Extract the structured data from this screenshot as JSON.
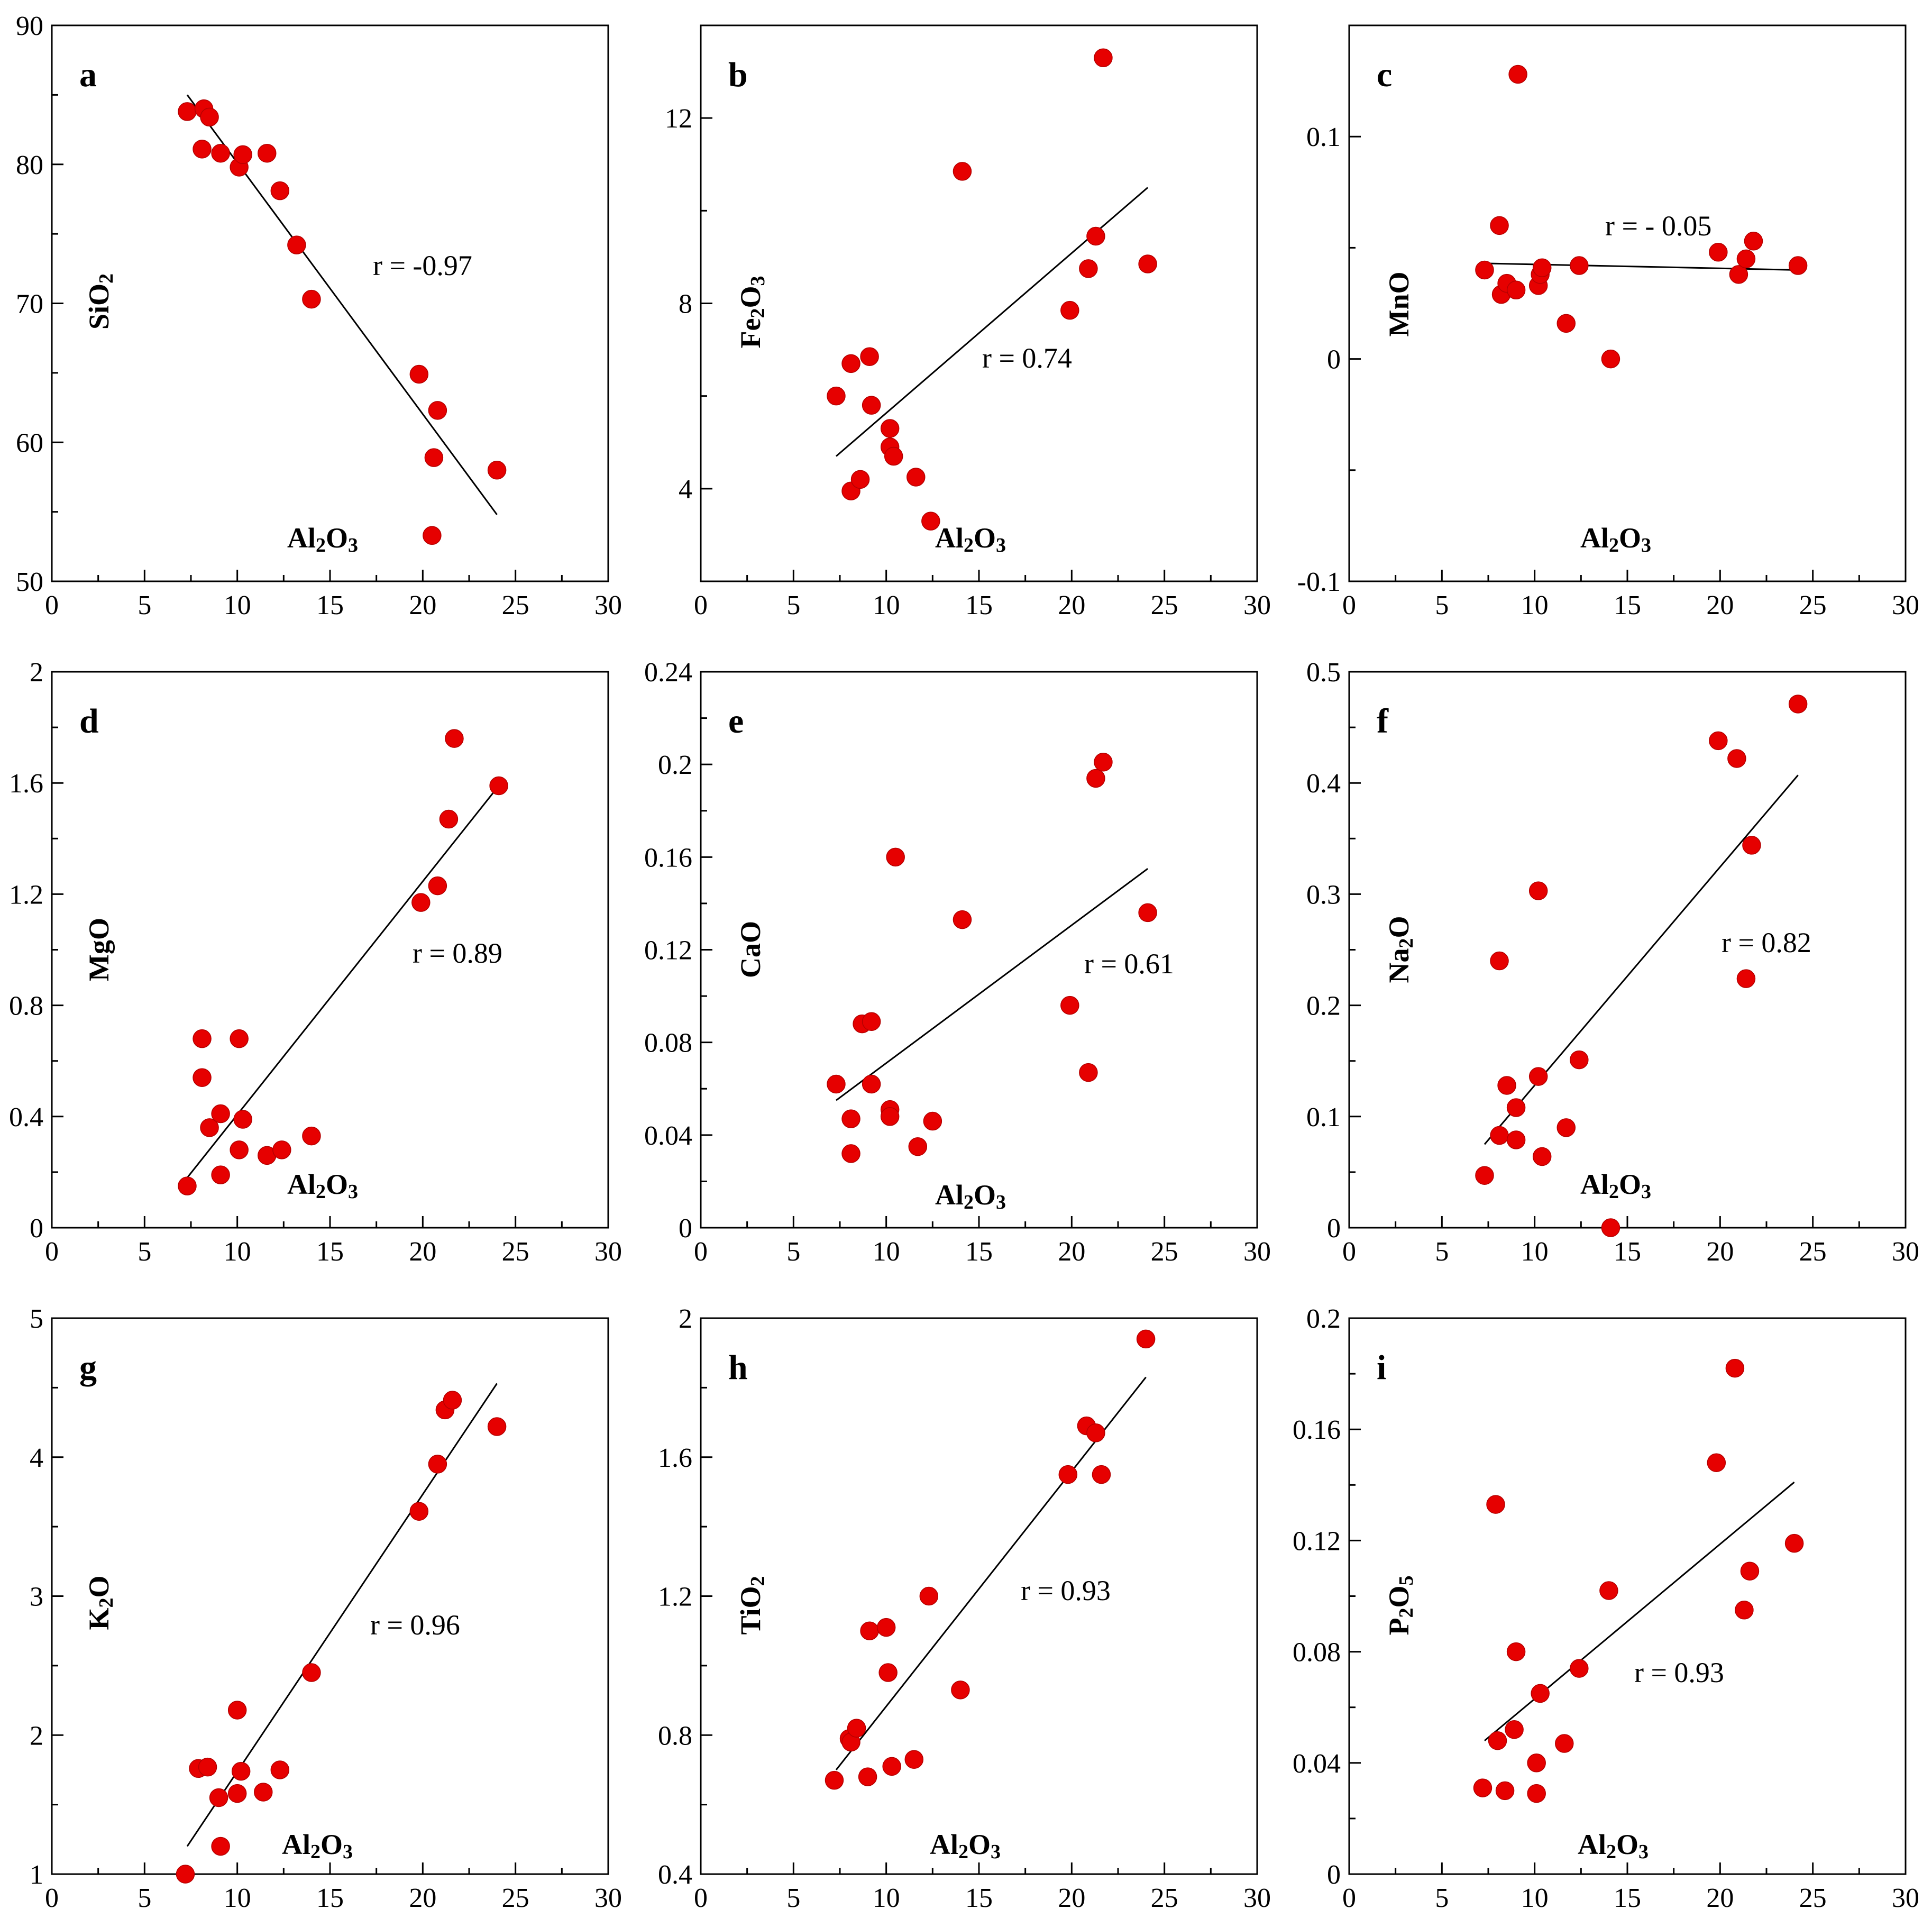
{
  "figure": {
    "accent_color": "#e60000",
    "line_color": "#000000"
  },
  "chart_data": [
    {
      "id": "a",
      "type": "scatter",
      "letter": "a",
      "xlabel": "Al2O3",
      "ylabel": "SiO2",
      "xlabel_html": {
        "base": "Al",
        "sub1": "2",
        "mid": "O",
        "sub2": "3"
      },
      "ylabel_parts": [
        {
          "t": "SiO"
        },
        {
          "t": "2",
          "sub": true
        }
      ],
      "xlim": [
        0,
        30
      ],
      "ylim": [
        50,
        90
      ],
      "xticks": [
        0,
        5,
        10,
        15,
        20,
        25,
        30
      ],
      "yticks": [
        50,
        60,
        70,
        80,
        90
      ],
      "annotation": "r = -0.97",
      "points": [
        [
          7.3,
          83.8
        ],
        [
          8.2,
          84.0
        ],
        [
          8.5,
          83.4
        ],
        [
          8.1,
          81.1
        ],
        [
          9.1,
          80.8
        ],
        [
          10.1,
          79.8
        ],
        [
          10.3,
          80.7
        ],
        [
          11.6,
          80.8
        ],
        [
          12.3,
          78.1
        ],
        [
          13.2,
          74.2
        ],
        [
          14.0,
          70.3
        ],
        [
          19.8,
          64.9
        ],
        [
          20.8,
          62.3
        ],
        [
          20.6,
          58.9
        ],
        [
          20.5,
          53.3
        ],
        [
          24.0,
          58.0
        ]
      ],
      "fit": [
        [
          7.3,
          85.0
        ],
        [
          24.0,
          54.8
        ]
      ]
    },
    {
      "id": "b",
      "type": "scatter",
      "letter": "b",
      "xlabel": "Al2O3",
      "ylabel": "Fe2O3",
      "ylabel_parts": [
        {
          "t": "Fe"
        },
        {
          "t": "2",
          "sub": true
        },
        {
          "t": "O"
        },
        {
          "t": "3",
          "sub": true
        }
      ],
      "xlim": [
        0,
        30
      ],
      "ylim": [
        2,
        14
      ],
      "xticks": [
        0,
        5,
        10,
        15,
        20,
        25,
        30
      ],
      "yticks": [
        4,
        8,
        12
      ],
      "annotation": "r = 0.74",
      "points": [
        [
          7.3,
          6.0
        ],
        [
          8.1,
          6.7
        ],
        [
          9.1,
          6.85
        ],
        [
          9.2,
          5.8
        ],
        [
          10.2,
          5.3
        ],
        [
          10.2,
          4.9
        ],
        [
          10.4,
          4.7
        ],
        [
          8.1,
          3.95
        ],
        [
          8.6,
          4.2
        ],
        [
          11.6,
          4.25
        ],
        [
          12.4,
          3.3
        ],
        [
          14.1,
          10.85
        ],
        [
          19.9,
          7.85
        ],
        [
          20.9,
          8.75
        ],
        [
          21.3,
          9.45
        ],
        [
          21.7,
          13.3
        ],
        [
          24.1,
          8.85
        ]
      ],
      "fit": [
        [
          7.3,
          4.7
        ],
        [
          24.1,
          10.5
        ]
      ]
    },
    {
      "id": "c",
      "type": "scatter",
      "letter": "c",
      "xlabel": "Al2O3",
      "ylabel": "MnO",
      "ylabel_parts": [
        {
          "t": "MnO"
        }
      ],
      "xlim": [
        0,
        30
      ],
      "ylim": [
        -0.1,
        0.15
      ],
      "xticks": [
        0,
        5,
        10,
        15,
        20,
        25,
        30
      ],
      "yticks": [
        -0.1,
        0,
        0.1
      ],
      "annotation": "r = - 0.05",
      "points": [
        [
          7.3,
          0.04
        ],
        [
          8.1,
          0.06
        ],
        [
          8.2,
          0.029
        ],
        [
          8.5,
          0.034
        ],
        [
          9.0,
          0.031
        ],
        [
          9.1,
          0.128
        ],
        [
          10.2,
          0.033
        ],
        [
          10.3,
          0.038
        ],
        [
          10.4,
          0.041
        ],
        [
          11.7,
          0.016
        ],
        [
          12.4,
          0.042
        ],
        [
          14.1,
          0.0
        ],
        [
          19.9,
          0.048
        ],
        [
          21.0,
          0.038
        ],
        [
          21.4,
          0.045
        ],
        [
          21.8,
          0.053
        ],
        [
          24.2,
          0.042
        ]
      ],
      "fit": [
        [
          7.3,
          0.043
        ],
        [
          24.2,
          0.04
        ]
      ]
    },
    {
      "id": "d",
      "type": "scatter",
      "letter": "d",
      "xlabel": "Al2O3",
      "ylabel": "MgO",
      "ylabel_parts": [
        {
          "t": "MgO"
        }
      ],
      "xlim": [
        0,
        30
      ],
      "ylim": [
        0,
        2
      ],
      "xticks": [
        0,
        5,
        10,
        15,
        20,
        25,
        30
      ],
      "yticks": [
        0,
        0.4,
        0.8,
        1.2,
        1.6,
        2
      ],
      "annotation": "r = 0.89",
      "points": [
        [
          7.3,
          0.15
        ],
        [
          8.1,
          0.68
        ],
        [
          8.1,
          0.54
        ],
        [
          8.5,
          0.36
        ],
        [
          9.1,
          0.41
        ],
        [
          9.1,
          0.19
        ],
        [
          10.1,
          0.68
        ],
        [
          10.1,
          0.28
        ],
        [
          10.3,
          0.39
        ],
        [
          11.6,
          0.26
        ],
        [
          12.4,
          0.28
        ],
        [
          14.0,
          0.33
        ],
        [
          19.9,
          1.17
        ],
        [
          20.8,
          1.23
        ],
        [
          21.4,
          1.47
        ],
        [
          21.7,
          1.76
        ],
        [
          24.1,
          1.59
        ]
      ],
      "fit": [
        [
          7.3,
          0.18
        ],
        [
          24.1,
          1.59
        ]
      ]
    },
    {
      "id": "e",
      "type": "scatter",
      "letter": "e",
      "xlabel": "Al2O3",
      "ylabel": "CaO",
      "ylabel_parts": [
        {
          "t": "CaO"
        }
      ],
      "xlim": [
        0,
        30
      ],
      "ylim": [
        0,
        0.24
      ],
      "xticks": [
        0,
        5,
        10,
        15,
        20,
        25,
        30
      ],
      "yticks": [
        0,
        0.04,
        0.08,
        0.12,
        0.16,
        0.2,
        0.24
      ],
      "annotation": "r = 0.61",
      "points": [
        [
          7.3,
          0.062
        ],
        [
          8.1,
          0.047
        ],
        [
          8.1,
          0.032
        ],
        [
          8.7,
          0.088
        ],
        [
          9.2,
          0.089
        ],
        [
          9.2,
          0.062
        ],
        [
          10.2,
          0.051
        ],
        [
          10.2,
          0.048
        ],
        [
          10.5,
          0.16
        ],
        [
          11.7,
          0.035
        ],
        [
          12.5,
          0.046
        ],
        [
          14.1,
          0.133
        ],
        [
          19.9,
          0.096
        ],
        [
          20.9,
          0.067
        ],
        [
          21.3,
          0.194
        ],
        [
          21.7,
          0.201
        ],
        [
          24.1,
          0.136
        ]
      ],
      "fit": [
        [
          7.3,
          0.055
        ],
        [
          24.1,
          0.155
        ]
      ]
    },
    {
      "id": "f",
      "type": "scatter",
      "letter": "f",
      "xlabel": "Al2O3",
      "ylabel": "Na2O",
      "ylabel_parts": [
        {
          "t": "Na"
        },
        {
          "t": "2",
          "sub": true
        },
        {
          "t": "O"
        }
      ],
      "xlim": [
        0,
        30
      ],
      "ylim": [
        0,
        0.5
      ],
      "xticks": [
        0,
        5,
        10,
        15,
        20,
        25,
        30
      ],
      "yticks": [
        0,
        0.1,
        0.2,
        0.3,
        0.4,
        0.5
      ],
      "annotation": "r = 0.82",
      "points": [
        [
          7.3,
          0.047
        ],
        [
          8.1,
          0.24
        ],
        [
          8.1,
          0.083
        ],
        [
          8.5,
          0.128
        ],
        [
          9.0,
          0.108
        ],
        [
          9.0,
          0.079
        ],
        [
          10.2,
          0.303
        ],
        [
          10.2,
          0.136
        ],
        [
          10.4,
          0.064
        ],
        [
          11.7,
          0.09
        ],
        [
          12.4,
          0.151
        ],
        [
          14.1,
          0.0
        ],
        [
          19.9,
          0.438
        ],
        [
          20.9,
          0.422
        ],
        [
          21.4,
          0.224
        ],
        [
          21.7,
          0.344
        ],
        [
          24.2,
          0.471
        ]
      ],
      "fit": [
        [
          7.3,
          0.075
        ],
        [
          24.2,
          0.407
        ]
      ]
    },
    {
      "id": "g",
      "type": "scatter",
      "letter": "g",
      "xlabel": "Al2O3",
      "ylabel": "K2O",
      "ylabel_parts": [
        {
          "t": "K"
        },
        {
          "t": "2",
          "sub": true
        },
        {
          "t": "O"
        }
      ],
      "xlim": [
        0,
        30
      ],
      "ylim": [
        1,
        5
      ],
      "xticks": [
        0,
        5,
        10,
        15,
        20,
        25,
        30
      ],
      "yticks": [
        1,
        2,
        3,
        4,
        5
      ],
      "annotation": "r = 0.96",
      "points": [
        [
          7.2,
          1.0
        ],
        [
          7.9,
          1.76
        ],
        [
          8.4,
          1.77
        ],
        [
          9.0,
          1.55
        ],
        [
          9.1,
          1.2
        ],
        [
          10.0,
          1.58
        ],
        [
          10.0,
          2.18
        ],
        [
          10.2,
          1.74
        ],
        [
          11.4,
          1.59
        ],
        [
          12.3,
          1.75
        ],
        [
          14.0,
          2.45
        ],
        [
          19.8,
          3.61
        ],
        [
          20.8,
          3.95
        ],
        [
          21.2,
          4.34
        ],
        [
          21.6,
          4.41
        ],
        [
          24.0,
          4.22
        ]
      ],
      "fit": [
        [
          7.3,
          1.2
        ],
        [
          24.0,
          4.53
        ]
      ]
    },
    {
      "id": "h",
      "type": "scatter",
      "letter": "h",
      "xlabel": "Al2O3",
      "ylabel": "TiO2",
      "ylabel_parts": [
        {
          "t": "TiO"
        },
        {
          "t": "2",
          "sub": true
        }
      ],
      "xlim": [
        0,
        30
      ],
      "ylim": [
        0.4,
        2
      ],
      "xticks": [
        0,
        5,
        10,
        15,
        20,
        25,
        30
      ],
      "yticks": [
        0.4,
        0.8,
        1.2,
        1.6,
        2
      ],
      "annotation": "r = 0.93",
      "points": [
        [
          7.2,
          0.67
        ],
        [
          8.0,
          0.79
        ],
        [
          8.1,
          0.78
        ],
        [
          8.4,
          0.82
        ],
        [
          9.0,
          0.68
        ],
        [
          9.1,
          1.1
        ],
        [
          10.0,
          1.11
        ],
        [
          10.1,
          0.98
        ],
        [
          10.3,
          0.71
        ],
        [
          11.5,
          0.73
        ],
        [
          12.3,
          1.2
        ],
        [
          14.0,
          0.93
        ],
        [
          19.8,
          1.55
        ],
        [
          20.8,
          1.69
        ],
        [
          21.3,
          1.67
        ],
        [
          21.6,
          1.55
        ],
        [
          24.0,
          1.94
        ]
      ],
      "fit": [
        [
          7.3,
          0.7
        ],
        [
          24.0,
          1.83
        ]
      ]
    },
    {
      "id": "i",
      "type": "scatter",
      "letter": "i",
      "xlabel": "Al2O3",
      "ylabel": "P2O5",
      "ylabel_parts": [
        {
          "t": "P"
        },
        {
          "t": "2",
          "sub": true
        },
        {
          "t": "O"
        },
        {
          "t": "5",
          "sub": true
        }
      ],
      "xlim": [
        0,
        30
      ],
      "ylim": [
        0,
        0.2
      ],
      "xticks": [
        0,
        5,
        10,
        15,
        20,
        25,
        30
      ],
      "yticks": [
        0,
        0.04,
        0.08,
        0.12,
        0.16,
        0.2
      ],
      "annotation": "r = 0.93",
      "points": [
        [
          7.2,
          0.031
        ],
        [
          7.9,
          0.133
        ],
        [
          8.0,
          0.048
        ],
        [
          8.4,
          0.03
        ],
        [
          8.9,
          0.052
        ],
        [
          9.0,
          0.08
        ],
        [
          10.1,
          0.04
        ],
        [
          10.1,
          0.029
        ],
        [
          10.3,
          0.065
        ],
        [
          11.6,
          0.047
        ],
        [
          12.4,
          0.074
        ],
        [
          14.0,
          0.102
        ],
        [
          19.8,
          0.148
        ],
        [
          20.8,
          0.182
        ],
        [
          21.3,
          0.095
        ],
        [
          21.6,
          0.109
        ],
        [
          24.0,
          0.119
        ]
      ],
      "fit": [
        [
          7.3,
          0.048
        ],
        [
          24.0,
          0.141
        ]
      ]
    }
  ]
}
